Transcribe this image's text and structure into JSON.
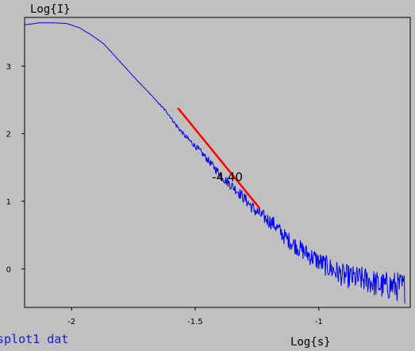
{
  "chart_data": {
    "type": "line",
    "xlabel": "Log{s}",
    "ylabel": "Log{I}",
    "xlim": [
      -2.19,
      -0.63
    ],
    "ylim": [
      -0.57,
      3.72
    ],
    "x_ticks": [
      {
        "value": -2.0,
        "label": "-2"
      },
      {
        "value": -1.5,
        "label": "-1.5"
      },
      {
        "value": -1.0,
        "label": "-1"
      }
    ],
    "y_ticks": [
      {
        "value": 0,
        "label": "0"
      },
      {
        "value": 1,
        "label": "1"
      },
      {
        "value": 2,
        "label": "2"
      },
      {
        "value": 3,
        "label": "3"
      }
    ],
    "grid": false,
    "series": [
      {
        "color": "#0000ff",
        "noisy": true,
        "x": [
          -2.19,
          -2.13,
          -2.07,
          -2.02,
          -1.97,
          -1.92,
          -1.87,
          -1.84,
          -1.81,
          -1.77,
          -1.73,
          -1.69,
          -1.65,
          -1.61,
          -1.58,
          -1.54,
          -1.5,
          -1.46,
          -1.42,
          -1.38,
          -1.33,
          -1.3,
          -1.26,
          -1.22,
          -1.18,
          -1.14,
          -1.1,
          -1.05,
          -1.0,
          -0.95,
          -0.9,
          -0.85,
          -0.8,
          -0.75,
          -0.7,
          -0.65
        ],
        "y": [
          3.61,
          3.64,
          3.64,
          3.63,
          3.57,
          3.46,
          3.33,
          3.21,
          3.09,
          2.93,
          2.77,
          2.62,
          2.46,
          2.3,
          2.14,
          1.96,
          1.82,
          1.66,
          1.49,
          1.32,
          1.16,
          1.04,
          0.87,
          0.76,
          0.66,
          0.48,
          0.36,
          0.23,
          0.11,
          0.0,
          -0.1,
          -0.14,
          -0.17,
          -0.25,
          -0.25,
          -0.28
        ]
      },
      {
        "color": "#ff0000",
        "x": [
          -1.57,
          -1.24
        ],
        "y": [
          2.38,
          0.9
        ]
      }
    ],
    "annotations": [
      {
        "text": "-4.40",
        "x": -1.37,
        "y": 1.3
      }
    ],
    "file_label": "splot1 dat"
  }
}
